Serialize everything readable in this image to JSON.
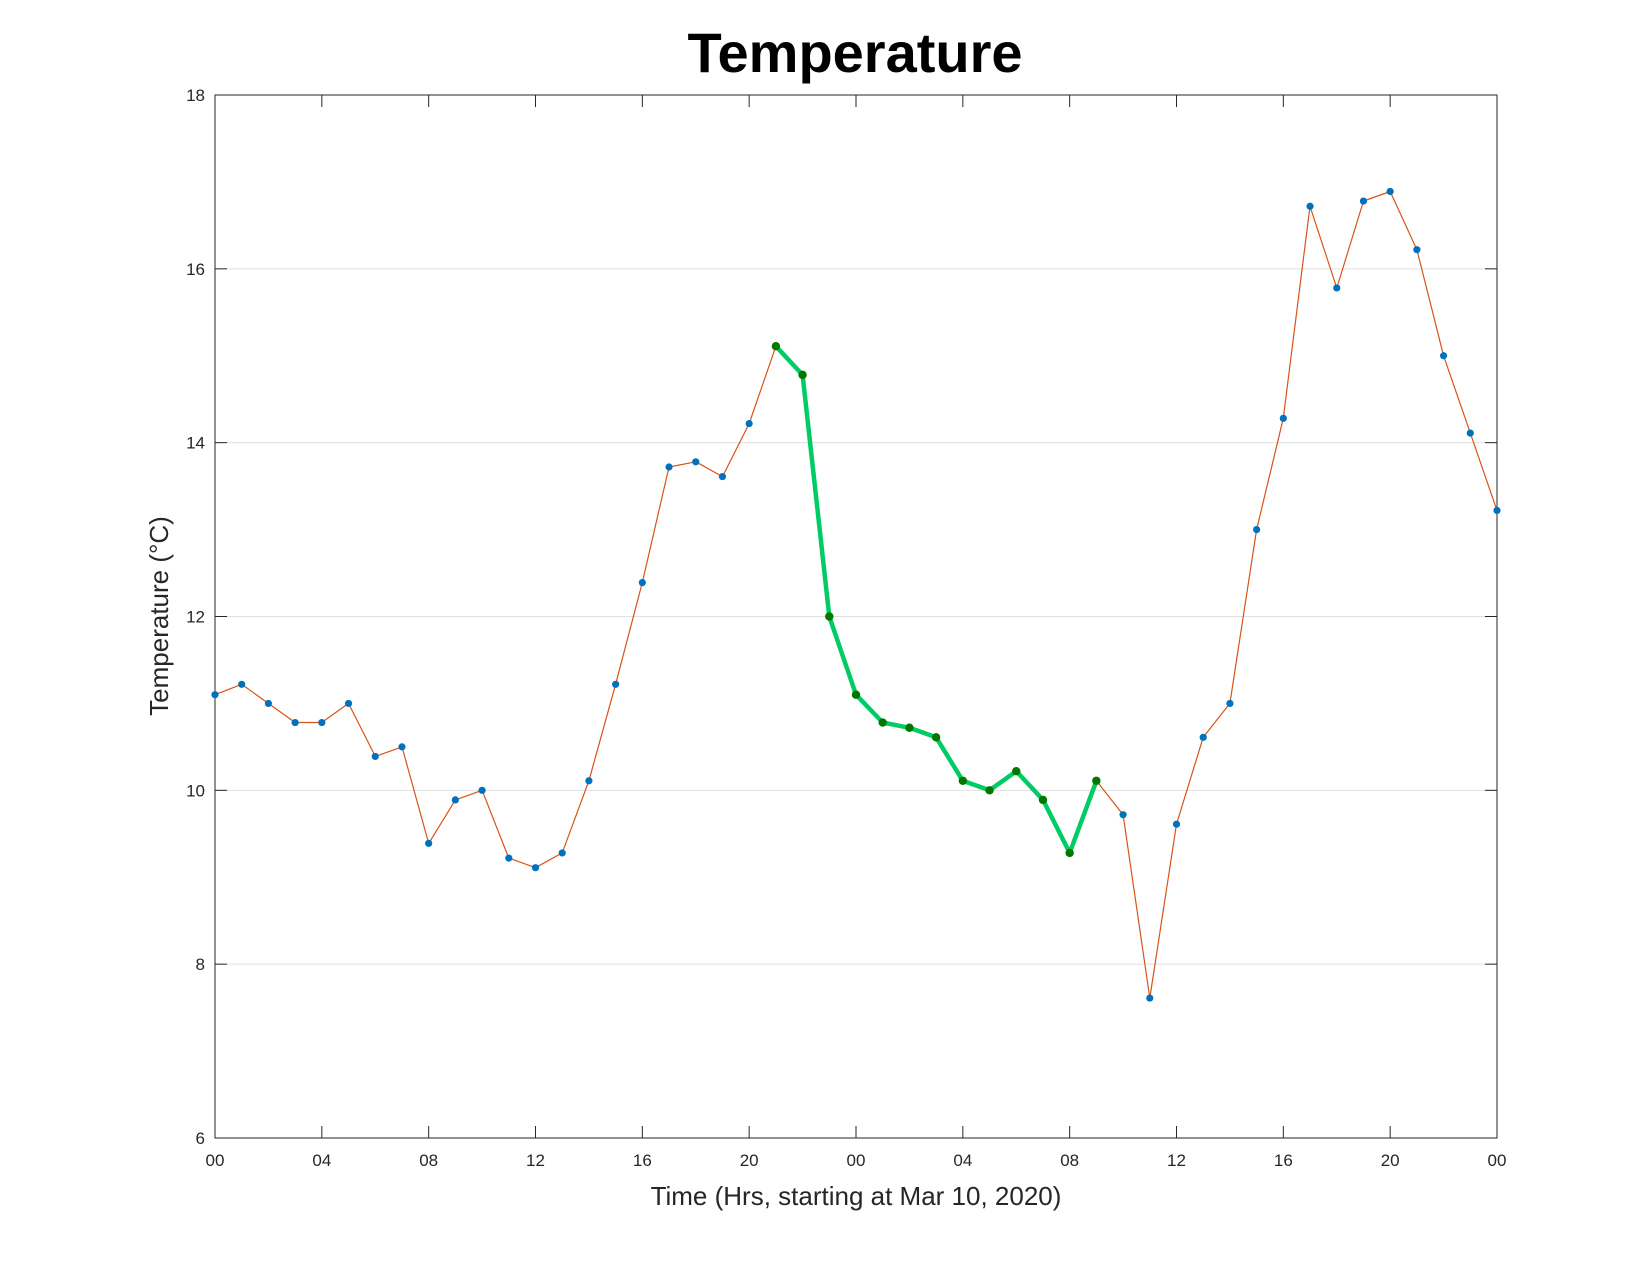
{
  "chart_data": {
    "type": "line",
    "title": "Temperature",
    "xlabel": "Time (Hrs, starting at Mar 10, 2020)",
    "ylabel": "Temperature (°C)",
    "x_unit": "hours",
    "xlim": [
      0,
      48
    ],
    "ylim": [
      6,
      18
    ],
    "xticks": [
      0,
      4,
      8,
      12,
      16,
      20,
      24,
      28,
      32,
      36,
      40,
      44,
      48
    ],
    "xtick_labels": [
      "00",
      "04",
      "08",
      "12",
      "16",
      "20",
      "00",
      "04",
      "08",
      "12",
      "16",
      "20",
      "00"
    ],
    "yticks": [
      6,
      8,
      10,
      12,
      14,
      16,
      18
    ],
    "grid": "horizontal",
    "colors": {
      "line": "#D95319",
      "markers": "#0072BD",
      "highlight_line": "#00CC66",
      "highlight_markers": "#007700"
    },
    "series": [
      {
        "x": [
          0,
          1,
          2,
          3,
          4,
          5,
          6,
          7,
          8,
          9,
          10,
          11,
          12,
          13,
          14,
          15,
          16,
          17,
          18,
          19,
          20,
          21,
          22,
          23,
          24,
          25,
          26,
          27,
          28,
          29,
          30,
          31,
          32,
          33,
          34,
          35,
          36,
          37,
          38,
          39,
          40,
          41,
          42,
          43,
          44,
          45,
          46,
          47,
          48
        ],
        "values": [
          11.1,
          11.22,
          11.0,
          10.78,
          10.78,
          11.0,
          10.39,
          10.5,
          9.39,
          9.89,
          10.0,
          9.22,
          9.11,
          9.28,
          10.11,
          11.22,
          12.39,
          13.72,
          13.78,
          13.61,
          14.22,
          15.11,
          14.78,
          12.0,
          11.1,
          10.78,
          10.72,
          10.61,
          10.11,
          10.0,
          10.22,
          9.89,
          9.28,
          10.11,
          9.72,
          7.61,
          9.61,
          10.61,
          11.0,
          13.0,
          14.28,
          16.72,
          15.78,
          16.78,
          16.89,
          16.22,
          15.0,
          14.11,
          13.22
        ]
      },
      {
        "x": [
          21,
          22,
          23,
          24,
          25,
          26,
          27,
          28,
          29,
          30,
          31,
          32,
          33
        ],
        "values": [
          15.11,
          14.78,
          12.0,
          11.1,
          10.78,
          10.72,
          10.61,
          10.11,
          10.0,
          10.22,
          9.89,
          9.28,
          10.11
        ]
      }
    ]
  }
}
